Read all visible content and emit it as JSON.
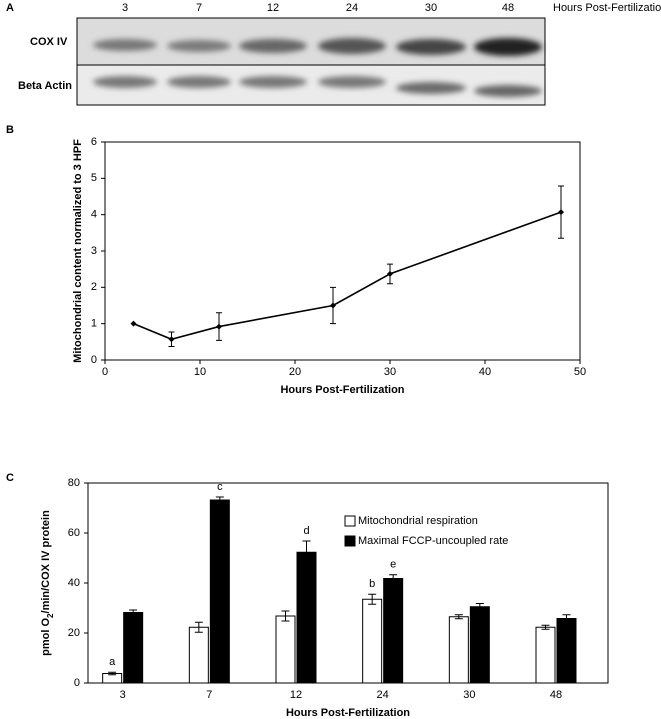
{
  "blot": {
    "panel_label": "A",
    "lanes": [
      "3",
      "7",
      "12",
      "24",
      "30",
      "48"
    ],
    "x_label": "Hours Post-Fertilization",
    "rows": [
      "COX IV",
      "Beta Actin"
    ]
  },
  "chart_data": [
    {
      "type": "line",
      "panel_label": "B",
      "x_label": "Hours Post-Fertilization",
      "y_label": "Mitochondrial content normalized to 3 HPF",
      "x": [
        3,
        7,
        12,
        24,
        30,
        48
      ],
      "series": [
        {
          "color": "#000000",
          "values": [
            1,
            0.57,
            0.92,
            1.5,
            2.37,
            4.07
          ],
          "errors": [
            0,
            0.2,
            0.38,
            0.5,
            0.27,
            0.72
          ]
        }
      ],
      "xlim": [
        0,
        50
      ],
      "xticks": [
        0,
        10,
        20,
        30,
        40,
        50
      ],
      "ylim": [
        0,
        6
      ],
      "yticks": [
        0,
        1,
        2,
        3,
        4,
        5,
        6
      ],
      "grid": false
    },
    {
      "type": "bar",
      "panel_label": "C",
      "x_label": "Hours Post-Fertilization",
      "y_label": [
        "pmol O",
        "2",
        "/min/COX IV protein"
      ],
      "categories": [
        "3",
        "7",
        "12",
        "24",
        "30",
        "48"
      ],
      "series": [
        {
          "name": "Mitochondrial respiration",
          "color": "#ffffff",
          "values": [
            3.8,
            22.3,
            26.8,
            33.5,
            26.5,
            22.3
          ],
          "errors": [
            0.5,
            2,
            2,
            2,
            0.8,
            0.8
          ],
          "annotations": [
            "a",
            null,
            null,
            "b",
            null,
            null
          ]
        },
        {
          "name": "Maximal FCCP-uncoupled rate",
          "color": "#000000",
          "values": [
            28.2,
            73.2,
            52.3,
            41.8,
            30.5,
            25.8
          ],
          "errors": [
            1,
            1.2,
            4.5,
            1.5,
            1.3,
            1.5
          ],
          "annotations": [
            null,
            "c",
            "d",
            "e",
            null,
            null
          ]
        }
      ],
      "ylim": [
        0,
        80
      ],
      "yticks": [
        0,
        20,
        40,
        60,
        80
      ],
      "grid": false,
      "legend": "upper right"
    }
  ]
}
